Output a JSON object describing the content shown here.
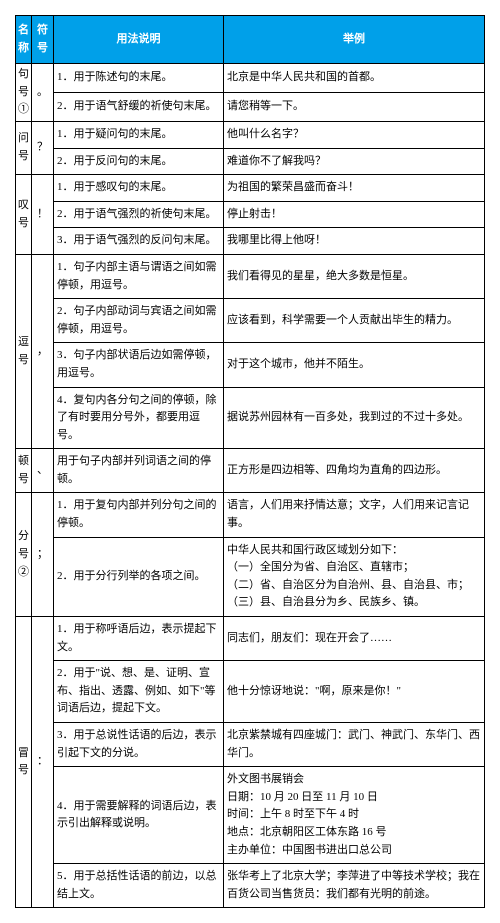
{
  "header": {
    "c1": "名称",
    "c2": "符号",
    "c3": "用法说明",
    "c4": "举例"
  },
  "rows": [
    {
      "name": "句号①",
      "sym": "。",
      "items": [
        {
          "use": "1．用于陈述句的末尾。",
          "ex": "北京是中华人民共和国的首都。"
        },
        {
          "use": "2．用于语气舒缓的祈使句末尾。",
          "ex": "请您稍等一下。"
        }
      ]
    },
    {
      "name": "问号",
      "sym": "？",
      "items": [
        {
          "use": "1．用于疑问句的末尾。",
          "ex": "他叫什么名字？"
        },
        {
          "use": "2．用于反问句的末尾。",
          "ex": "难道你不了解我吗？"
        }
      ]
    },
    {
      "name": "叹号",
      "sym": "！",
      "items": [
        {
          "use": "1．用于感叹句的末尾。",
          "ex": "为祖国的繁荣昌盛而奋斗！"
        },
        {
          "use": "2．用于语气强烈的祈使句末尾。",
          "ex": "停止射击！"
        },
        {
          "use": "3．用于语气强烈的反问句末尾。",
          "ex": "我哪里比得上他呀！"
        }
      ]
    },
    {
      "name": "逗号",
      "sym": "，",
      "items": [
        {
          "use": "1．句子内部主语与谓语之间如需停顿，用逗号。",
          "ex": "我们看得见的星星，绝大多数是恒星。"
        },
        {
          "use": "2．句子内部动词与宾语之间如需停顿，用逗号。",
          "ex": "应该看到，科学需要一个人贡献出毕生的精力。"
        },
        {
          "use": "3．句子内部状语后边如需停顿，用逗号。",
          "ex": "对于这个城市，他并不陌生。"
        },
        {
          "use": "4．复句内各分句之间的停顿，除了有时要用分号外，都要用逗号。",
          "ex": "据说苏州园林有一百多处，我到过的不过十多处。"
        }
      ]
    },
    {
      "name": "顿号",
      "sym": "、",
      "items": [
        {
          "use": "用于句子内部并列词语之间的停顿。",
          "ex": "正方形是四边相等、四角均为直角的四边形。"
        }
      ]
    },
    {
      "name": "分号②",
      "sym": "；",
      "items": [
        {
          "use": "1．用于复句内部并列分句之间的停顿。",
          "ex": "语言，人们用来抒情达意；文字，人们用来记言记事。"
        },
        {
          "use": "2．用于分行列举的各项之间。",
          "ex": "中华人民共和国行政区域划分如下：\n（一）全国分为省、自治区、直辖市；\n（二）省、自治区分为自治州、县、自治县、市；\n（三）县、自治县分为乡、民族乡、镇。"
        }
      ]
    },
    {
      "name": "冒号",
      "sym": "：",
      "items": [
        {
          "use": "1．用于称呼语后边，表示提起下文。",
          "ex": "同志们，朋友们：现在开会了……"
        },
        {
          "use": "2．用于\"说、想、是、证明、宣布、指出、透露、例如、如下\"等词语后边，提起下文。",
          "ex": "他十分惊讶地说：\"啊，原来是你！\""
        },
        {
          "use": "3．用于总说性话语的后边，表示引起下文的分说。",
          "ex": "北京紫禁城有四座城门：武门、神武门、东华门、西华门。"
        },
        {
          "use": "4．用于需要解释的词语后边，表示引出解释或说明。",
          "ex": "外文图书展销会\n日期：10 月 20 日至 11 月 10 日\n时间：上午 8 时至下午 4 时\n地点：北京朝阳区工体东路 16 号\n主办单位：中国图书进出口总公司"
        },
        {
          "use": "5．用于总括性话语的前边，以总结上文。",
          "ex": "张华考上了北京大学；李萍进了中等技术学校；我在百货公司当售货员：我们都有光明的前途。"
        }
      ]
    }
  ]
}
